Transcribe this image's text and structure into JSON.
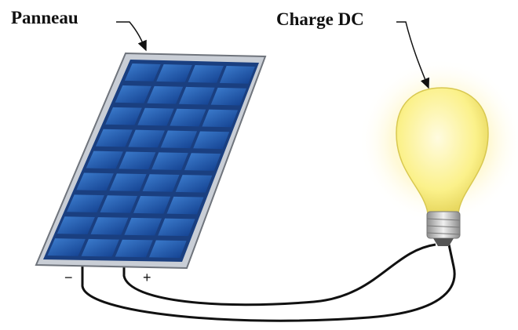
{
  "labels": {
    "panel": "Panneau",
    "load": "Charge DC",
    "minus": "−",
    "plus": "+"
  }
}
